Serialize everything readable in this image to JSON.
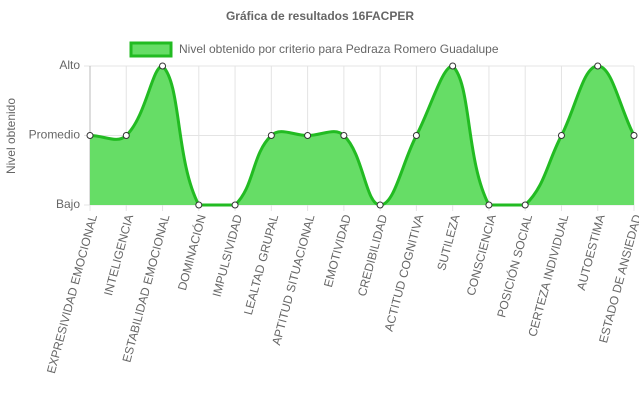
{
  "chart_data": {
    "type": "area",
    "title": "Gráfica de resultados 16FACPER",
    "y_label": "Nivel obtenido",
    "categories": [
      "EXPRESIVIDAD EMOCIONAL",
      "INTELIGENCIA",
      "ESTABILIDAD EMOCIONAL",
      "DOMINACIÓN",
      "IMPULSIVIDAD",
      "LEALTAD GRUPAL",
      "APTITUD SITUACIONAL",
      "EMOTIVIDAD",
      "CREDIBILIDAD",
      "ACTITUD COGNITIVA",
      "SUTILEZA",
      "CONSCIENCIA",
      "POSICIÓN SOCIAL",
      "CERTEZA INDIVIDUAL",
      "AUTOESTIMA",
      "ESTADO DE ANSIEDAD"
    ],
    "series": [
      {
        "name": "Nivel obtenido por criterio para Pedraza Romero Guadalupe",
        "color": "#22bb22",
        "fill": "#66dd66",
        "values": [
          1,
          1,
          2,
          0,
          0,
          1,
          1,
          1,
          0,
          1,
          2,
          0,
          0,
          1,
          2,
          1
        ]
      }
    ],
    "ylim": [
      0,
      2
    ],
    "yticks": [
      {
        "value": 0,
        "label": "Bajo"
      },
      {
        "value": 1,
        "label": "Promedio"
      },
      {
        "value": 2,
        "label": "Alto"
      }
    ],
    "grid": true
  }
}
